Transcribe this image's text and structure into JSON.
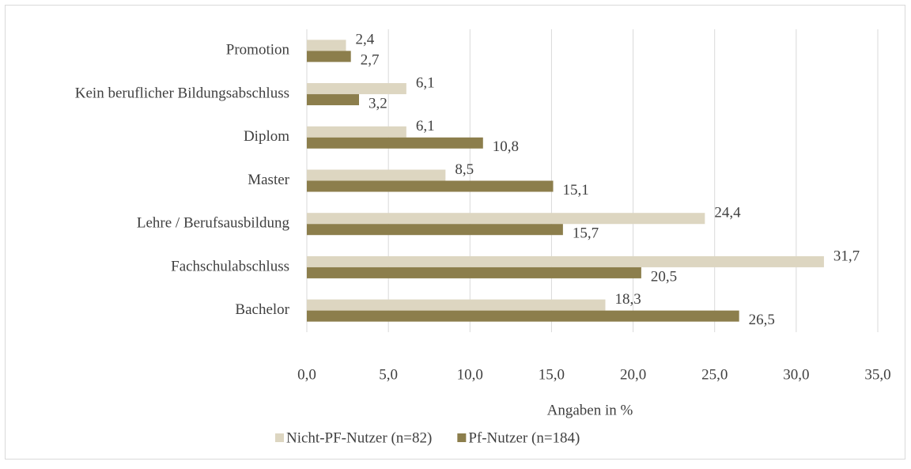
{
  "chart_data": {
    "type": "bar",
    "orientation": "horizontal",
    "categories": [
      "Promotion",
      "Kein beruflicher Bildungsabschluss",
      "Diplom",
      "Master",
      "Lehre / Berufsausbildung",
      "Fachschulabschluss",
      "Bachelor"
    ],
    "series": [
      {
        "name": "Nicht-PF-Nutzer (n=82)",
        "color": "#ddd6c1",
        "values": [
          2.4,
          6.1,
          6.1,
          8.5,
          24.4,
          31.7,
          18.3
        ],
        "value_labels": [
          "2,4",
          "6,1",
          "6,1",
          "8,5",
          "24,4",
          "31,7",
          "18,3"
        ]
      },
      {
        "name": "Pf-Nutzer (n=184)",
        "color": "#8c7e4c",
        "values": [
          2.7,
          3.2,
          10.8,
          15.1,
          15.7,
          20.5,
          26.5
        ],
        "value_labels": [
          "2,7",
          "3,2",
          "10,8",
          "15,1",
          "15,7",
          "20,5",
          "26,5"
        ]
      }
    ],
    "xlabel": "Angaben in %",
    "xlim": [
      0,
      35
    ],
    "xticks": [
      {
        "value": 0,
        "label": "0,0"
      },
      {
        "value": 5,
        "label": "5,0"
      },
      {
        "value": 10,
        "label": "10,0"
      },
      {
        "value": 15,
        "label": "15,0"
      },
      {
        "value": 20,
        "label": "20,0"
      },
      {
        "value": 25,
        "label": "25,0"
      },
      {
        "value": 30,
        "label": "30,0"
      },
      {
        "value": 35,
        "label": "35,0"
      }
    ],
    "grid": true,
    "legend": "bottom"
  }
}
